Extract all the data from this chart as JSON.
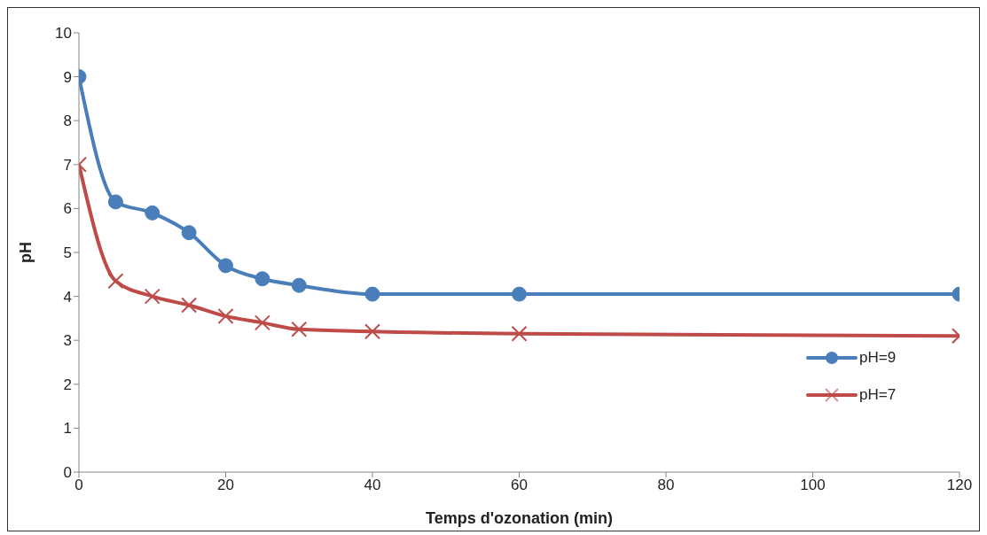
{
  "chart_data": {
    "type": "line",
    "xlabel": "Temps d'ozonation  (min)",
    "ylabel": "pH",
    "x": [
      0,
      5,
      10,
      15,
      20,
      25,
      30,
      40,
      60,
      120
    ],
    "series": [
      {
        "name": "pH=9",
        "color": "#4a7ebb",
        "marker": "circle",
        "values": [
          9,
          6.15,
          5.9,
          5.45,
          4.7,
          4.4,
          4.25,
          4.05,
          4.05,
          4.05
        ]
      },
      {
        "name": "pH=7",
        "color": "#be4b48",
        "marker": "cross",
        "values": [
          7,
          4.35,
          4.0,
          3.8,
          3.55,
          3.4,
          3.25,
          3.2,
          3.15,
          3.1
        ]
      }
    ],
    "xlim": [
      0,
      120
    ],
    "xticks": [
      0,
      20,
      40,
      60,
      80,
      100,
      120
    ],
    "ylim": [
      0,
      10
    ],
    "yticks": [
      0,
      1,
      2,
      3,
      4,
      5,
      6,
      7,
      8,
      9,
      10
    ],
    "grid": false,
    "legend": "right"
  }
}
